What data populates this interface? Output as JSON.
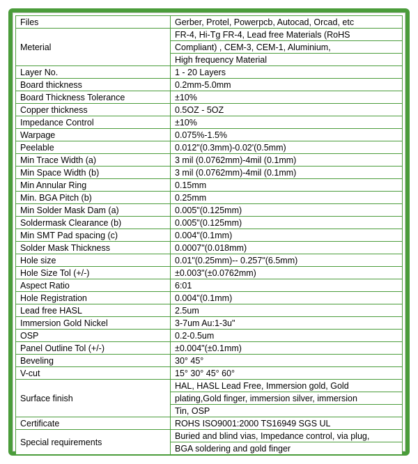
{
  "spec_table": {
    "border_color": "#4a9c3a",
    "background_color": "#ffffff",
    "text_color": "#000000",
    "font_size": 12.5,
    "label_col_width_pct": 40,
    "value_col_width_pct": 60,
    "rows": [
      {
        "label": "Files",
        "value": "Gerber, Protel, Powerpcb, Autocad, Orcad, etc",
        "label_rowspan": 1
      },
      {
        "label": "Meterial",
        "value": "FR-4, Hi-Tg FR-4,  Lead free Materials (RoHS",
        "label_rowspan": 3
      },
      {
        "value": "Compliant) , CEM-3, CEM-1, Aluminium,"
      },
      {
        "value": "High frequency Material"
      },
      {
        "label": "Layer No.",
        "value": "1 - 20 Layers"
      },
      {
        "label": "Board thickness",
        "value": "0.2mm-5.0mm"
      },
      {
        "label": "Board Thickness Tolerance",
        "value": "±10%"
      },
      {
        "label": "Copper thickness",
        "value": "0.5OZ - 5OZ"
      },
      {
        "label": "Impedance Control",
        "value": "±10%"
      },
      {
        "label": "Warpage",
        "value": "0.075%-1.5%"
      },
      {
        "label": "Peelable",
        "value": "0.012\"(0.3mm)-0.02'(0.5mm)"
      },
      {
        "label": "Min Trace Width (a)",
        "value": "3 mil (0.0762mm)-4mil (0.1mm)"
      },
      {
        "label": "Min Space Width (b)",
        "value": "3 mil (0.0762mm)-4mil (0.1mm)"
      },
      {
        "label": "Min Annular Ring",
        "value": "0.15mm"
      },
      {
        "label": "Min. BGA Pitch (b)",
        "value": "0.25mm"
      },
      {
        "label": "Min Solder Mask Dam (a)",
        "value": " 0.005\"(0.125mm)"
      },
      {
        "label": "Soldermask Clearance (b)",
        "value": " 0.005\"(0.125mm)"
      },
      {
        "label": "Min SMT Pad spacing (c)",
        "value": " 0.004\"(0.1mm)"
      },
      {
        "label": "Solder Mask Thickness",
        "value": " 0.0007\"(0.018mm)"
      },
      {
        "label": "Hole size",
        "value": " 0.01\"(0.25mm)-- 0.257\"(6.5mm)"
      },
      {
        "label": "Hole Size Tol (+/-)",
        "value": "±0.003\"(±0.0762mm)"
      },
      {
        "label": "Aspect Ratio",
        "value": "6:01"
      },
      {
        "label": "Hole Registration",
        "value": "0.004\"(0.1mm)"
      },
      {
        "label": "Lead free HASL",
        "value": "2.5um"
      },
      {
        "label": "Immersion Gold  Nickel",
        "value": "3-7um  Au:1-3u\""
      },
      {
        "label": "OSP",
        "value": "0.2-0.5um"
      },
      {
        "label": "Panel Outline Tol (+/-)",
        "value": "±0.004\"(±0.1mm)"
      },
      {
        "label": "Beveling",
        "value": "30°     45°"
      },
      {
        "label": "V-cut",
        "value": "15° 30° 45° 60°"
      },
      {
        "label": "Surface finish",
        "value": "HAL, HASL Lead Free, Immersion gold, Gold",
        "label_rowspan": 3
      },
      {
        "value": "plating,Gold finger, immersion silver, immersion"
      },
      {
        "value": "Tin, OSP"
      },
      {
        "label": "Certificate",
        "value": " ROHS  ISO9001:2000  TS16949  SGS  UL"
      },
      {
        "label": "Special requirements",
        "value": "Buried and blind vias, Impedance control, via plug,",
        "label_rowspan": 2
      },
      {
        "value": "BGA soldering and gold finger"
      }
    ]
  }
}
